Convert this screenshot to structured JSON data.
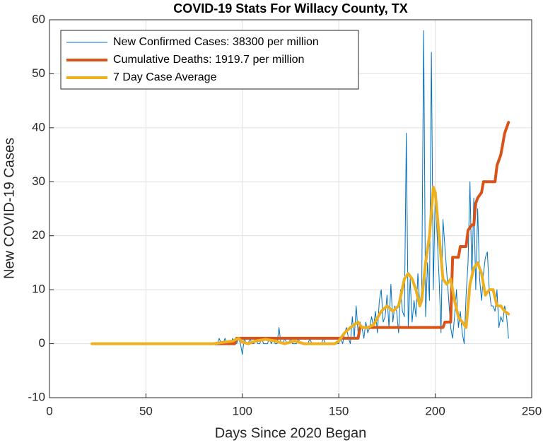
{
  "chart_data": {
    "type": "line",
    "title": "COVID-19 Stats For Willacy County, TX",
    "x_label": "Days Since 2020 Began",
    "y_label": "New COVID-19 Cases",
    "xlim": [
      0,
      250
    ],
    "xticks": [
      0,
      50,
      100,
      150,
      200,
      250
    ],
    "ylim": [
      -10,
      60
    ],
    "yticks": [
      -10,
      0,
      10,
      20,
      30,
      40,
      50,
      60
    ],
    "grid": true,
    "legend": "upper left",
    "series": [
      {
        "name": "New Confirmed Cases: 38300 per million",
        "color": "#0072BD",
        "width": 1,
        "x": [
          86,
          87,
          88,
          89,
          90,
          91,
          92,
          93,
          94,
          95,
          96,
          97,
          98,
          99,
          100,
          101,
          102,
          103,
          104,
          105,
          106,
          107,
          108,
          109,
          110,
          111,
          112,
          113,
          114,
          115,
          116,
          117,
          118,
          119,
          120,
          121,
          122,
          123,
          124,
          125,
          126,
          127,
          128,
          129,
          130,
          131,
          132,
          133,
          134,
          135,
          136,
          137,
          138,
          139,
          140,
          141,
          142,
          143,
          144,
          145,
          146,
          147,
          148,
          149,
          150,
          151,
          152,
          153,
          154,
          155,
          156,
          157,
          158,
          159,
          160,
          161,
          162,
          163,
          164,
          165,
          166,
          167,
          168,
          169,
          170,
          171,
          172,
          173,
          174,
          175,
          176,
          177,
          178,
          179,
          180,
          181,
          182,
          183,
          184,
          185,
          186,
          187,
          188,
          189,
          190,
          191,
          192,
          193,
          194,
          195,
          196,
          197,
          198,
          199,
          200,
          201,
          202,
          203,
          204,
          205,
          206,
          207,
          208,
          209,
          210,
          211,
          212,
          213,
          214,
          215,
          216,
          217,
          218,
          219,
          220,
          221,
          222,
          223,
          224,
          225,
          226,
          227,
          228,
          229,
          230,
          231,
          232,
          233,
          234,
          235,
          236,
          237,
          238
        ],
        "values": [
          0,
          0,
          1,
          0,
          0,
          1,
          0,
          0,
          0,
          1,
          0,
          0,
          1,
          0,
          -2,
          1,
          0,
          0,
          1,
          0,
          0,
          1,
          0,
          0,
          1,
          0,
          0,
          0,
          1,
          0,
          1,
          0,
          0,
          3,
          0,
          0,
          1,
          0,
          0,
          1,
          0,
          0,
          0,
          1,
          0,
          0,
          0,
          0,
          0,
          1,
          0,
          0,
          0,
          0,
          0,
          0,
          1,
          0,
          0,
          0,
          0,
          0,
          0,
          0,
          0,
          1,
          0,
          2,
          3,
          1,
          0,
          5,
          1,
          7,
          2,
          4,
          3,
          1,
          4,
          2,
          3,
          5,
          3,
          6,
          2,
          8,
          10,
          4,
          5,
          9,
          3,
          11,
          4,
          7,
          6,
          2,
          10,
          6,
          5,
          39,
          3,
          12,
          4,
          8,
          5,
          13,
          7,
          10,
          58,
          5,
          15,
          8,
          54,
          10,
          28,
          20,
          12,
          2,
          23,
          18,
          13,
          8,
          3,
          1,
          5,
          10,
          3,
          6,
          2,
          0,
          9,
          15,
          30,
          12,
          27,
          10,
          25,
          12,
          8,
          13,
          16,
          17,
          10,
          7,
          7,
          6,
          10,
          3,
          5,
          4,
          7,
          5,
          1
        ]
      },
      {
        "name": "Cumulative Deaths: 1919.7 per million",
        "color": "#D95319",
        "width": 4,
        "x": [
          86,
          96,
          97,
          160,
          161,
          204,
          205,
          208,
          209,
          212,
          213,
          216,
          217,
          219,
          220,
          221,
          222,
          224,
          225,
          231,
          232,
          233,
          234,
          235,
          236,
          237,
          238
        ],
        "values": [
          0,
          0,
          1,
          1,
          3,
          3,
          4,
          4,
          16,
          16,
          18,
          18,
          21,
          22,
          22,
          26,
          27,
          28,
          30,
          30,
          33,
          34,
          35,
          37,
          39,
          40,
          41
        ]
      },
      {
        "name": "7 Day Case Average",
        "color": "#EDB120",
        "width": 4,
        "x": [
          22,
          85,
          95,
          98,
          100,
          103,
          107,
          112,
          117,
          122,
          127,
          132,
          140,
          148,
          150,
          153,
          156,
          160,
          162,
          165,
          168,
          172,
          175,
          178,
          181,
          184,
          186,
          188,
          190,
          192,
          193,
          195,
          197,
          199,
          200,
          202,
          204,
          206,
          208,
          210,
          212,
          214,
          216,
          218,
          220,
          222,
          224,
          226,
          228,
          230,
          232,
          234,
          236,
          238
        ],
        "values": [
          0,
          0,
          0.5,
          1,
          0.3,
          0,
          0.5,
          0.8,
          0.5,
          0,
          0.5,
          0,
          0,
          0,
          0.5,
          2,
          3,
          4,
          3,
          3,
          3.5,
          6,
          7,
          6,
          7,
          12,
          13,
          12,
          10,
          7,
          8,
          15,
          20,
          29,
          28,
          20,
          12,
          11,
          12,
          8,
          5,
          4,
          3,
          11,
          14,
          15,
          13,
          9,
          10,
          10,
          7,
          7,
          6,
          5.5
        ]
      }
    ]
  }
}
